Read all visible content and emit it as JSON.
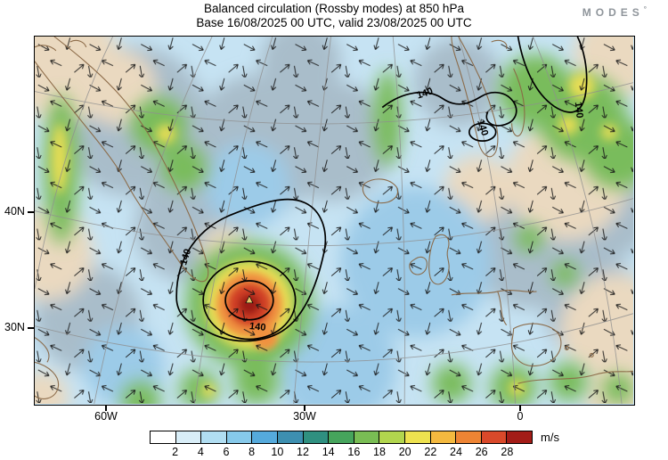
{
  "header": {
    "title_line1": "Balanced circulation (Rossby modes) at 850 hPa",
    "title_line2": "Base 16/08/2025 00 UTC, valid 23/08/2025 00 UTC",
    "logo_text": "MODES",
    "logo_mark": "°"
  },
  "map": {
    "lat_labels": [
      "40N",
      "30N"
    ],
    "lon_labels": [
      "60W",
      "30W",
      "0"
    ],
    "contour_label": "140"
  },
  "colorbar": {
    "unit": "m/s",
    "ticks": [
      "2",
      "4",
      "6",
      "8",
      "10",
      "12",
      "14",
      "16",
      "18",
      "20",
      "22",
      "24",
      "26",
      "28"
    ],
    "colors": [
      "#ffffff",
      "#d9eef8",
      "#b1def2",
      "#86c9ea",
      "#55aadc",
      "#3d8fb0",
      "#2f9080",
      "#46a45c",
      "#79bd54",
      "#b2d64e",
      "#eee24f",
      "#f4b93f",
      "#ee8434",
      "#d9492a",
      "#a31c17"
    ]
  },
  "chart_data": {
    "type": "heatmap",
    "title": "Balanced circulation (Rossby modes) at 850 hPa",
    "subtitle": "Base 16/08/2025 00 UTC, valid 23/08/2025 00 UTC",
    "field": "wind speed shading with wind vectors and contours",
    "unit": "m/s",
    "levels": [
      2,
      4,
      6,
      8,
      10,
      12,
      14,
      16,
      18,
      20,
      22,
      24,
      26,
      28
    ],
    "contour_values": [
      140
    ],
    "lat_ticks": [
      "40N",
      "30N"
    ],
    "lon_ticks": [
      "60W",
      "30W",
      "0"
    ],
    "notable_feature": "closed cyclonic circulation with shading above 28 m/s near 45W 33N"
  }
}
